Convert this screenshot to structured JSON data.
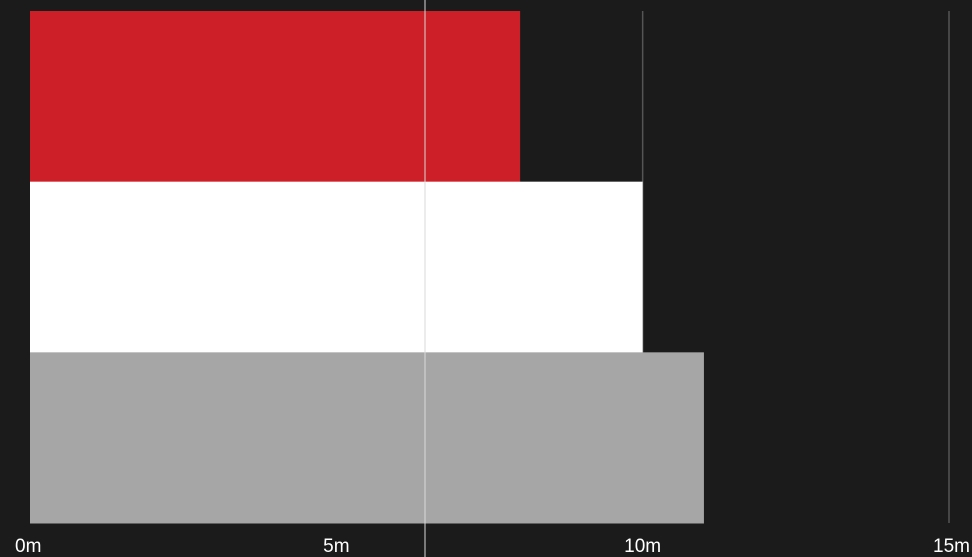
{
  "chart_data": {
    "type": "bar",
    "orientation": "horizontal",
    "title": "",
    "xlabel": "",
    "ylabel": "",
    "categories": [
      "",
      "",
      ""
    ],
    "values": [
      8,
      10,
      11
    ],
    "bar_colors": [
      "#cc1f27",
      "#ffffff",
      "#a6a6a6"
    ],
    "xlim": [
      0,
      15
    ],
    "x_ticks": [
      0,
      5,
      10,
      15
    ],
    "x_tick_labels": [
      "0m",
      "5m",
      "10m",
      "15m"
    ],
    "grid": true,
    "legend": "none"
  },
  "colors": {
    "background": "#1b1b1b",
    "gridline": "#555555",
    "text": "#ffffff"
  }
}
